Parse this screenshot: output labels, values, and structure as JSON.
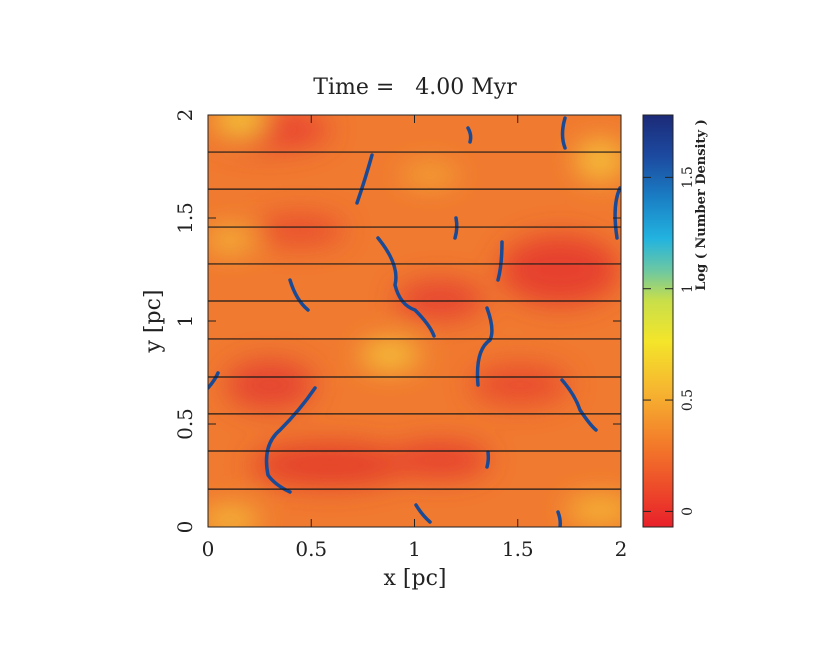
{
  "chart_data": {
    "type": "image",
    "title": "Time =   4.00 Myr",
    "xlabel": "x [pc]",
    "ylabel": "y [pc]",
    "xlim": [
      0,
      2
    ],
    "ylim": [
      0,
      2
    ],
    "xticks": [
      0,
      0.5,
      1,
      1.5,
      2
    ],
    "yticks": [
      0,
      0.5,
      1,
      1.5,
      2
    ],
    "field_lines": [
      0.184,
      0.369,
      0.549,
      0.728,
      0.913,
      1.097,
      1.277,
      1.456,
      1.64,
      1.82
    ],
    "field_line_color": "#1a1a1a",
    "colorbar": {
      "label": "Log ( Number Density )",
      "lim": [
        -0.07,
        1.78
      ],
      "ticks": [
        0,
        0.5,
        1,
        1.5
      ]
    }
  }
}
